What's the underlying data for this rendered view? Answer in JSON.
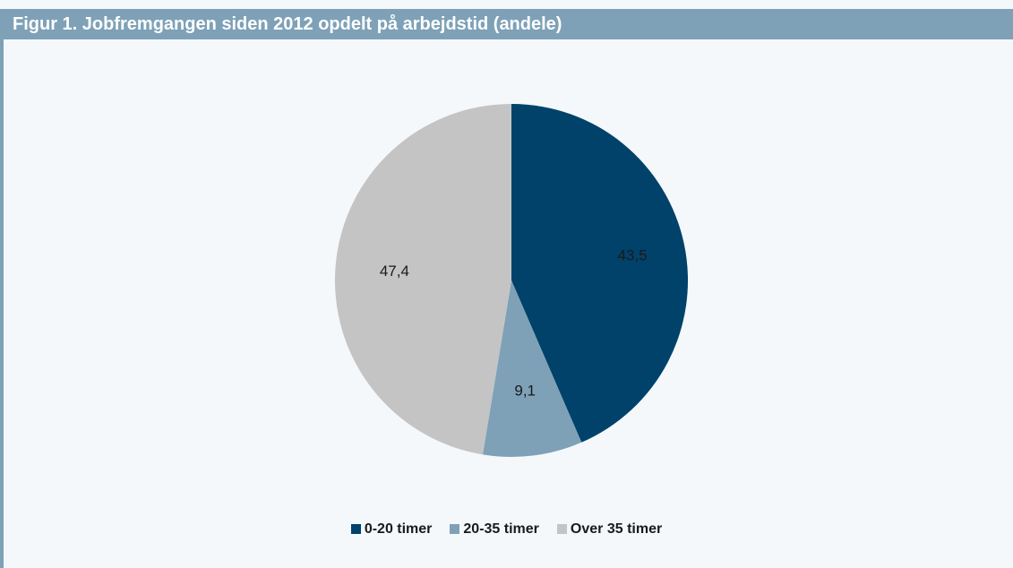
{
  "title": "Figur 1. Jobfremgangen siden 2012 opdelt på arbejdstid (andele)",
  "chart_data": {
    "type": "pie",
    "title": "Figur 1. Jobfremgangen siden 2012 opdelt på arbejdstid (andele)",
    "categories": [
      "0-20 timer",
      "20-35 timer",
      "Over 35 timer"
    ],
    "values": [
      43.5,
      9.1,
      47.4
    ],
    "data_labels": [
      "43,5",
      "9,1",
      "47,4"
    ],
    "colors": [
      "#00426a",
      "#7ea1b7",
      "#c4c4c4"
    ],
    "start": "12 o'clock, clockwise",
    "legend_position": "bottom"
  }
}
